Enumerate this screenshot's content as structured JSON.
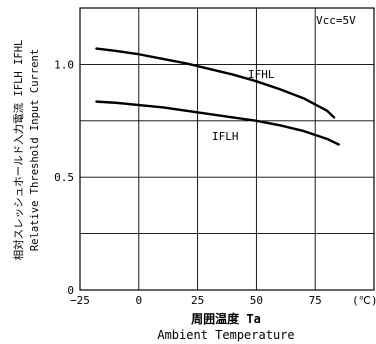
{
  "chart_data": {
    "type": "line",
    "ylabel_primary": "相対スレッシュホールド入力電流 IFLH IFHL",
    "ylabel_secondary": "Relative Threshold Input Current",
    "xlabel_primary": "周囲温度 Ta",
    "xlabel_secondary": "Ambient Temperature",
    "x_unit": "(℃)",
    "condition": "Vcc=5V",
    "xlim": [
      -25,
      100
    ],
    "ylim": [
      0,
      1.25
    ],
    "x_ticks": [
      -25,
      0,
      25,
      50,
      75
    ],
    "y_ticks": [
      0,
      0.5,
      1.0
    ],
    "x_tick_labels": [
      "−25",
      "0",
      "25",
      "50",
      "75"
    ],
    "y_tick_labels": [
      "0",
      "0.5",
      "1.0"
    ],
    "grid": true,
    "series": [
      {
        "name": "IFHL",
        "x": [
          -18,
          -10,
          0,
          10,
          20,
          30,
          40,
          50,
          60,
          70,
          80,
          83
        ],
        "y": [
          1.07,
          1.06,
          1.045,
          1.025,
          1.005,
          0.98,
          0.955,
          0.925,
          0.89,
          0.85,
          0.795,
          0.765
        ]
      },
      {
        "name": "IFLH",
        "x": [
          -18,
          -10,
          0,
          10,
          20,
          30,
          40,
          50,
          60,
          70,
          80,
          85
        ],
        "y": [
          0.835,
          0.83,
          0.82,
          0.81,
          0.795,
          0.78,
          0.765,
          0.75,
          0.73,
          0.705,
          0.67,
          0.645
        ]
      }
    ]
  }
}
